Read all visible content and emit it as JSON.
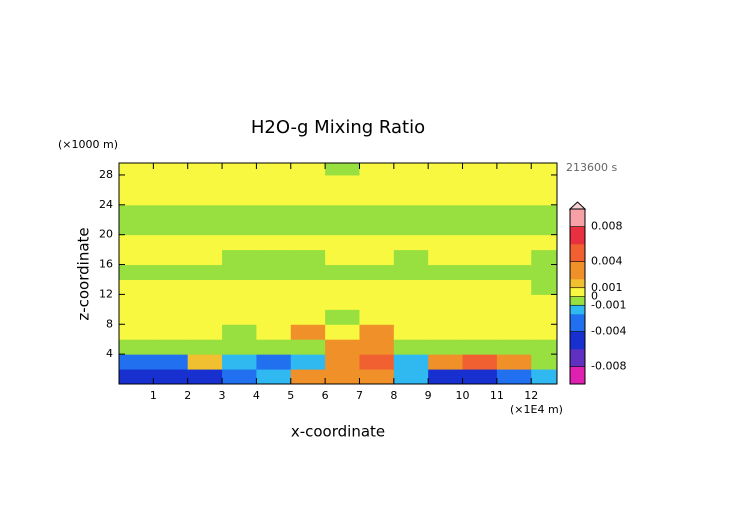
{
  "chart_data": {
    "type": "contour",
    "title": "H2O-g Mixing Ratio",
    "xlabel": "x-coordinate",
    "ylabel": "z-coordinate",
    "x_unit": "(×1E4 m)",
    "y_unit": "(×1000 m)",
    "time_label": "213600 s",
    "x": [
      0.5,
      1.5,
      2.5,
      3.5,
      4.5,
      5.5,
      6.5,
      7.5,
      8.5,
      9.5,
      10.5,
      11.5,
      12.5
    ],
    "y": [
      1,
      3,
      5,
      7,
      9,
      11,
      13,
      15,
      17,
      19,
      21,
      23,
      25,
      27,
      29
    ],
    "z": [
      [
        -0.005,
        -0.005,
        -0.005,
        -0.004,
        -0.002,
        0.002,
        0.002,
        0.003,
        -0.002,
        -0.005,
        -0.005,
        -0.004,
        -0.002
      ],
      [
        -0.003,
        -0.003,
        0.001,
        -0.002,
        -0.003,
        -0.002,
        0.003,
        0.004,
        -0.002,
        0.003,
        0.004,
        0.003,
        -0.001
      ],
      [
        -0.0005,
        -0.0005,
        -0.0005,
        -0.0005,
        -0.0005,
        -0.0005,
        0.002,
        0.003,
        -0.0005,
        -0.0005,
        -0.0005,
        -0.0005,
        -0.0005
      ],
      [
        0.0005,
        0.0005,
        0.0005,
        -0.0005,
        0.0005,
        0.002,
        0.0005,
        0.002,
        0.0005,
        0.0005,
        0.0005,
        0.0005,
        0.0005
      ],
      [
        0.0005,
        0.0005,
        0.0005,
        0.0005,
        0.0005,
        0.0005,
        -0.0005,
        0.0005,
        0.0005,
        0.0005,
        0.0005,
        0.0005,
        0.0005
      ],
      [
        0.0005,
        0.0005,
        0.0005,
        0.0005,
        0.0005,
        0.0005,
        0.0005,
        0.0005,
        0.0005,
        0.0005,
        0.0005,
        0.0005,
        0.0005
      ],
      [
        0.0005,
        0.0005,
        0.0005,
        0.0005,
        0.0005,
        0.0005,
        0.0005,
        0.0005,
        0.0005,
        0.0005,
        0.0005,
        0.0005,
        -0.0005
      ],
      [
        -0.0005,
        -0.0005,
        -0.0005,
        -0.0005,
        -0.0005,
        -0.0005,
        -0.0005,
        -0.0005,
        -0.0005,
        -0.0005,
        -0.0005,
        -0.0005,
        -0.0005
      ],
      [
        0.0005,
        0.0005,
        0.0005,
        -0.0005,
        -0.0005,
        -0.0005,
        0.0005,
        0.0005,
        -0.0005,
        0.0005,
        0.0005,
        0.0005,
        -0.0005
      ],
      [
        0.0005,
        0.0005,
        0.0005,
        0.0005,
        0.0005,
        0.0005,
        0.0005,
        0.0005,
        0.0005,
        0.0005,
        0.0005,
        0.0005,
        0.0005
      ],
      [
        -0.0005,
        -0.0005,
        -0.0005,
        -0.0005,
        -0.0005,
        -0.0005,
        -0.0005,
        -0.0005,
        -0.0005,
        -0.0005,
        -0.0005,
        -0.0005,
        -0.0005
      ],
      [
        -0.0005,
        -0.0005,
        -0.0005,
        -0.0005,
        -0.0005,
        -0.0005,
        -0.0005,
        -0.0005,
        -0.0005,
        -0.0005,
        -0.0005,
        -0.0005,
        -0.0005
      ],
      [
        0.0005,
        0.0005,
        0.0005,
        0.0005,
        0.0005,
        0.0005,
        0.0005,
        0.0005,
        0.0005,
        0.0005,
        0.0005,
        0.0005,
        0.0005
      ],
      [
        0.0005,
        0.0005,
        0.0005,
        0.0005,
        0.0005,
        0.0005,
        0.0005,
        0.0005,
        0.0005,
        0.0005,
        0.0005,
        0.0005,
        0.0005
      ],
      [
        0.0005,
        0.0005,
        0.0005,
        0.0005,
        0.0005,
        0.0005,
        -0.0005,
        0.0005,
        0.0005,
        0.0005,
        0.0005,
        0.0005,
        0.0005
      ]
    ],
    "xlim": [
      0,
      12.75
    ],
    "ylim": [
      0,
      29.6
    ],
    "xticks": [
      1,
      2,
      3,
      4,
      5,
      6,
      7,
      8,
      9,
      10,
      11,
      12
    ],
    "yticks": [
      4,
      8,
      12,
      16,
      20,
      24,
      28
    ],
    "clim": [
      -0.01,
      0.01
    ],
    "cticks": [
      0.008,
      0.004,
      0.001,
      0,
      -0.001,
      -0.004,
      -0.008
    ]
  }
}
